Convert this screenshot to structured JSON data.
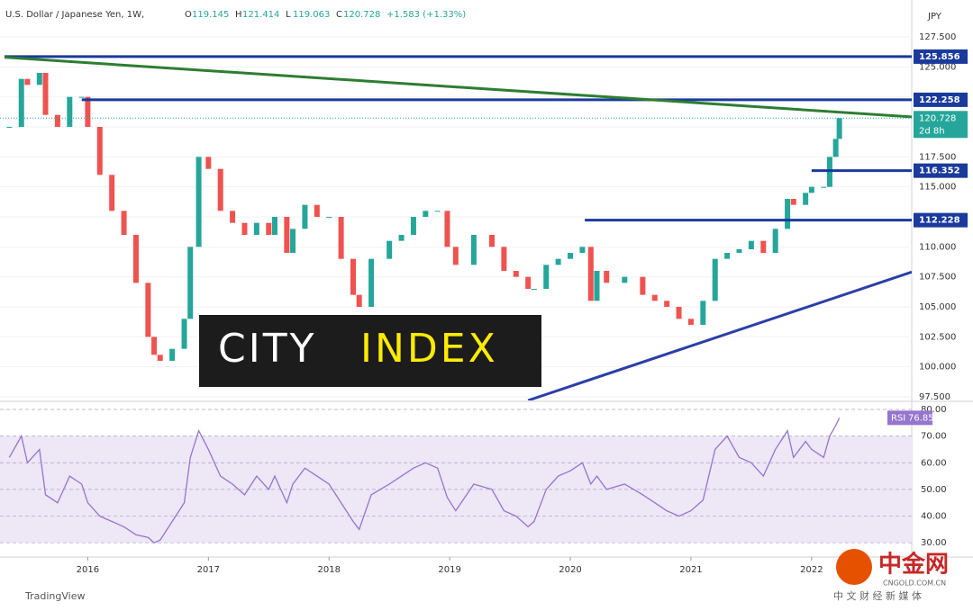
{
  "chart_data": {
    "type": "candlestick",
    "title": "U.S. Dollar / Japanese Yen, 1W,",
    "ohlc": [
      {
        "label": "O",
        "value": 119.145
      },
      {
        "label": "H",
        "value": 121.414
      },
      {
        "label": "L",
        "value": 119.063
      },
      {
        "label": "C",
        "value": 120.728
      }
    ],
    "change": "+1.583 (+1.33%)",
    "currency": "JPY",
    "x": [
      2015.35,
      2015.45,
      2015.5,
      2015.6,
      2015.65,
      2015.75,
      2015.85,
      2015.95,
      2016.0,
      2016.1,
      2016.2,
      2016.3,
      2016.4,
      2016.5,
      2016.55,
      2016.6,
      2016.7,
      2016.8,
      2016.85,
      2016.92,
      2017.0,
      2017.1,
      2017.2,
      2017.3,
      2017.4,
      2017.5,
      2017.55,
      2017.65,
      2017.7,
      2017.8,
      2017.9,
      2018.0,
      2018.1,
      2018.2,
      2018.25,
      2018.35,
      2018.5,
      2018.6,
      2018.7,
      2018.8,
      2018.9,
      2018.98,
      2019.05,
      2019.2,
      2019.35,
      2019.45,
      2019.55,
      2019.65,
      2019.7,
      2019.8,
      2019.9,
      2020.0,
      2020.1,
      2020.17,
      2020.22,
      2020.3,
      2020.45,
      2020.6,
      2020.7,
      2020.8,
      2020.9,
      2021.0,
      2021.1,
      2021.2,
      2021.3,
      2021.4,
      2021.5,
      2021.6,
      2021.7,
      2021.8,
      2021.85,
      2021.95,
      2022.0,
      2022.1,
      2022.15,
      2022.2,
      2022.23
    ],
    "series": [
      {
        "name": "USD/JPY",
        "up_color": "#26a69a",
        "down_color": "#ef5350",
        "values": [
          120,
          124,
          123.5,
          124.5,
          121,
          120,
          122.5,
          122.5,
          120,
          116,
          113,
          111,
          107,
          102.5,
          101,
          100.5,
          101.5,
          104,
          110,
          117.5,
          116.5,
          113,
          112,
          111,
          112,
          111,
          112.5,
          109.5,
          111.5,
          113.5,
          112.5,
          112.5,
          109,
          106,
          105,
          109,
          110.5,
          111,
          112.5,
          113,
          113,
          110,
          108.5,
          111,
          110,
          108,
          107.5,
          106.5,
          106.5,
          108.5,
          109,
          109.5,
          110,
          105.5,
          108,
          107,
          107.5,
          106,
          105.5,
          105,
          104,
          103.5,
          105.5,
          109,
          109.5,
          109.8,
          110.5,
          109.5,
          111.5,
          114,
          113.5,
          114.5,
          115,
          115,
          117.5,
          119,
          120.728
        ]
      }
    ],
    "xlim": [
      2015.31,
      2022.83
    ],
    "xticks": [
      2016,
      2017,
      2018,
      2019,
      2020,
      2021,
      2022
    ],
    "ylim": [
      97.2,
      130.575
    ],
    "yticks": [
      {
        "value": 97.5,
        "label": "97.500"
      },
      {
        "value": 100,
        "label": "100.000"
      },
      {
        "value": 102.5,
        "label": "102.500"
      },
      {
        "value": 105,
        "label": "105.000"
      },
      {
        "value": 107.5,
        "label": "107.500"
      },
      {
        "value": 110,
        "label": "110.000"
      },
      {
        "value": 112.5,
        "label": "112.500"
      },
      {
        "value": 115,
        "label": "115.000"
      },
      {
        "value": 117.5,
        "label": "117.500"
      },
      {
        "value": 120,
        "label": "120.000"
      },
      {
        "value": 122.5,
        "label": "122.500"
      },
      {
        "value": 125,
        "label": "125.000"
      },
      {
        "value": 127.5,
        "label": "127.500"
      }
    ],
    "levels": [
      {
        "value": 125.856,
        "x_start": 2015.31,
        "color": "#1a3a9c"
      },
      {
        "value": 122.258,
        "x_start": 2015.95,
        "color": "#1a3a9c"
      },
      {
        "value": 116.352,
        "x_start": 2022.0,
        "color": "#1a3a9c"
      },
      {
        "value": 112.228,
        "x_start": 2020.12,
        "color": "#1a3a9c"
      }
    ],
    "trendlines": [
      {
        "x": [
          2015.31,
          2022.83
        ],
        "y": [
          125.8,
          120.83
        ],
        "color": "#2e7d32"
      },
      {
        "x": [
          2019.65,
          2022.83
        ],
        "y": [
          97.2,
          107.9
        ],
        "color": "#2a3fa8"
      }
    ],
    "last": {
      "value": 120.728,
      "countdown": "2d 8h",
      "color": "#26a69a"
    },
    "rsi": {
      "name": "RSI",
      "color": "#9575cd",
      "last": 76.85,
      "values": [
        62,
        70,
        60,
        65,
        48,
        45,
        55,
        52,
        45,
        40,
        38,
        36,
        33,
        32,
        30,
        31,
        38,
        45,
        62,
        72,
        65,
        55,
        52,
        48,
        55,
        50,
        55,
        45,
        52,
        58,
        55,
        52,
        45,
        38,
        35,
        48,
        52,
        55,
        58,
        60,
        58,
        47,
        42,
        52,
        50,
        42,
        40,
        36,
        38,
        50,
        55,
        57,
        60,
        52,
        55,
        50,
        52,
        48,
        45,
        42,
        40,
        42,
        46,
        65,
        70,
        62,
        60,
        55,
        65,
        72,
        62,
        68,
        65,
        62,
        70,
        74,
        76.85
      ],
      "ylim": [
        25,
        82.7
      ],
      "band": [
        30,
        70
      ],
      "yticks": [
        {
          "value": 30,
          "label": "30.00"
        },
        {
          "value": 40,
          "label": "40.00"
        },
        {
          "value": 50,
          "label": "50.00"
        },
        {
          "value": 60,
          "label": "60.00"
        },
        {
          "value": 70,
          "label": "70.00"
        },
        {
          "value": 80,
          "label": "80.00"
        }
      ]
    },
    "watermark": [
      "CITY",
      "INDEX"
    ],
    "source": "TradingView",
    "logo": {
      "name": "中金网",
      "url": "CNGOLD.COM.CN",
      "tagline": "中 文 财 经 新 媒 体"
    }
  }
}
